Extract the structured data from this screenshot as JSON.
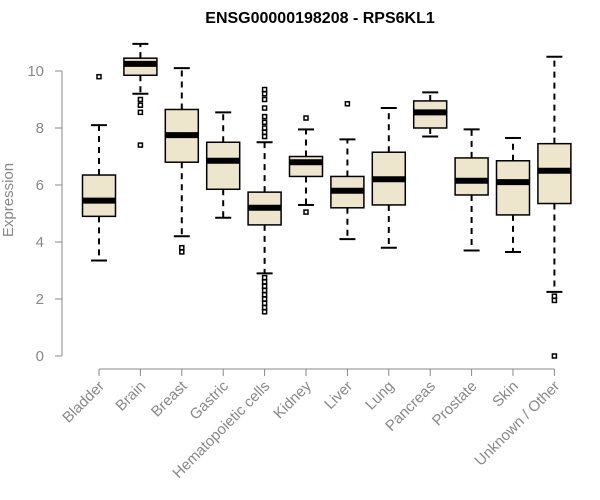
{
  "chart_data": {
    "type": "boxplot",
    "title": "ENSG00000198208 - RPS6KL1",
    "xlabel": "",
    "ylabel": "Expression",
    "ylim": [
      0,
      11
    ],
    "yticks": [
      0,
      2,
      4,
      6,
      8,
      10
    ],
    "box_color": "#ede6cc",
    "categories": [
      "Bladder",
      "Brain",
      "Breast",
      "Gastric",
      "Hematopoietic cells",
      "Kidney",
      "Liver",
      "Lung",
      "Pancreas",
      "Prostate",
      "Skin",
      "Unknown / Other"
    ],
    "boxes": [
      {
        "min": 3.35,
        "q1": 4.9,
        "median": 5.45,
        "q3": 6.35,
        "max": 8.1,
        "outliers": [
          9.8
        ]
      },
      {
        "min": 9.2,
        "q1": 9.85,
        "median": 10.25,
        "q3": 10.45,
        "max": 10.95,
        "outliers": [
          9.0,
          8.8,
          8.55,
          7.4
        ]
      },
      {
        "min": 4.2,
        "q1": 6.8,
        "median": 7.75,
        "q3": 8.65,
        "max": 10.1,
        "outliers": [
          3.8,
          3.65
        ]
      },
      {
        "min": 4.85,
        "q1": 5.85,
        "median": 6.85,
        "q3": 7.5,
        "max": 8.55,
        "outliers": []
      },
      {
        "min": 2.9,
        "q1": 4.6,
        "median": 5.2,
        "q3": 5.75,
        "max": 7.5,
        "outliers": [
          9.35,
          9.2,
          9.0,
          8.7,
          8.4,
          8.2,
          8.0,
          7.85,
          7.7,
          2.75,
          2.6,
          2.45,
          2.3,
          2.15,
          2.0,
          1.85,
          1.7,
          1.55
        ]
      },
      {
        "min": 5.3,
        "q1": 6.3,
        "median": 6.8,
        "q3": 7.0,
        "max": 7.95,
        "outliers": [
          8.35,
          5.05
        ]
      },
      {
        "min": 4.1,
        "q1": 5.2,
        "median": 5.8,
        "q3": 6.3,
        "max": 7.6,
        "outliers": [
          8.85
        ]
      },
      {
        "min": 3.8,
        "q1": 5.3,
        "median": 6.2,
        "q3": 7.15,
        "max": 8.7,
        "outliers": []
      },
      {
        "min": 7.7,
        "q1": 8.0,
        "median": 8.55,
        "q3": 8.95,
        "max": 9.25,
        "outliers": []
      },
      {
        "min": 3.7,
        "q1": 5.65,
        "median": 6.15,
        "q3": 6.95,
        "max": 7.95,
        "outliers": []
      },
      {
        "min": 3.65,
        "q1": 4.95,
        "median": 6.1,
        "q3": 6.85,
        "max": 7.65,
        "outliers": []
      },
      {
        "min": 2.25,
        "q1": 5.35,
        "median": 6.5,
        "q3": 7.45,
        "max": 10.5,
        "outliers": [
          2.1,
          1.95,
          0.0
        ]
      }
    ]
  }
}
